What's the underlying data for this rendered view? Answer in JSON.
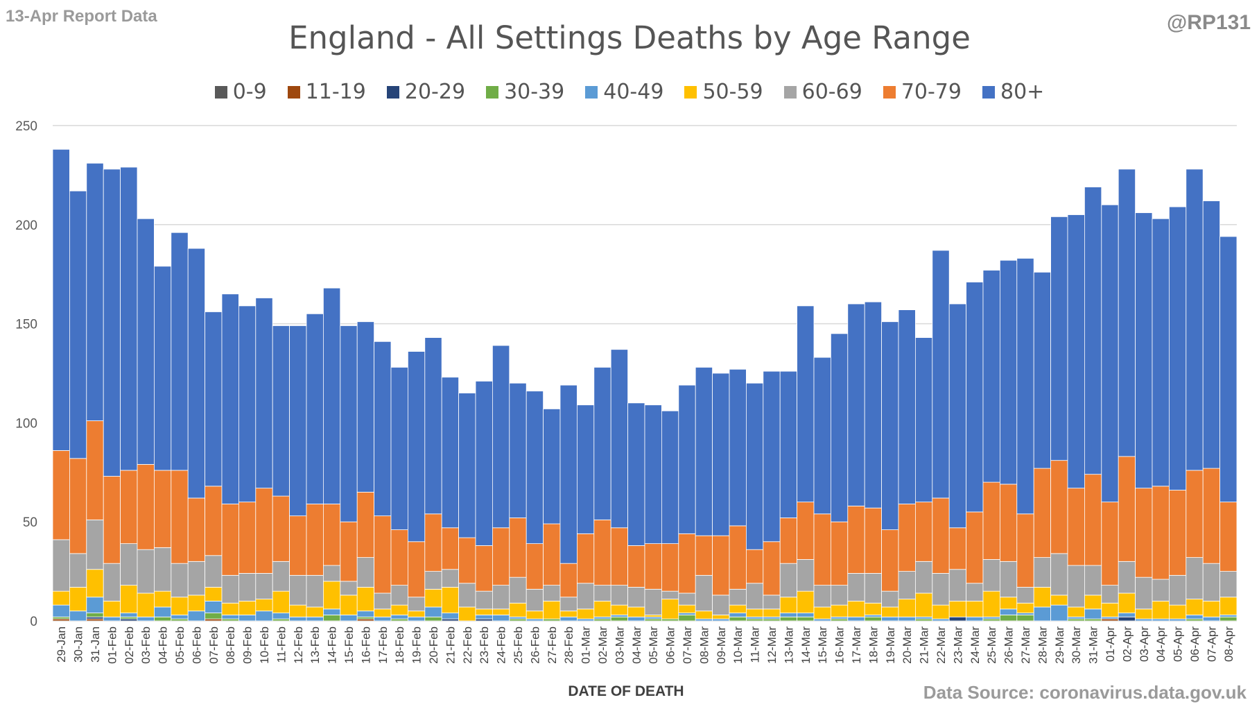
{
  "header": {
    "report_label": "13-Apr Report Data",
    "handle": "@RP131",
    "source": "Data Source: coronavirus.data.gov.uk"
  },
  "chart_data": {
    "type": "bar",
    "stacked": true,
    "title": "England - All Settings Deaths by Age Range",
    "xlabel": "DATE OF DEATH",
    "ylabel": "",
    "ylim": [
      0,
      250
    ],
    "yticks": [
      0,
      50,
      100,
      150,
      200,
      250
    ],
    "grid": true,
    "legend_position": "top",
    "categories": [
      "29-Jan",
      "30-Jan",
      "31-Jan",
      "01-Feb",
      "02-Feb",
      "03-Feb",
      "04-Feb",
      "05-Feb",
      "06-Feb",
      "07-Feb",
      "08-Feb",
      "09-Feb",
      "10-Feb",
      "11-Feb",
      "12-Feb",
      "13-Feb",
      "14-Feb",
      "15-Feb",
      "16-Feb",
      "17-Feb",
      "18-Feb",
      "19-Feb",
      "20-Feb",
      "21-Feb",
      "22-Feb",
      "23-Feb",
      "24-Feb",
      "25-Feb",
      "26-Feb",
      "27-Feb",
      "28-Feb",
      "01-Mar",
      "02-Mar",
      "03-Mar",
      "04-Mar",
      "05-Mar",
      "06-Mar",
      "07-Mar",
      "08-Mar",
      "09-Mar",
      "10-Mar",
      "11-Mar",
      "12-Mar",
      "13-Mar",
      "14-Mar",
      "15-Mar",
      "16-Mar",
      "17-Mar",
      "18-Mar",
      "19-Mar",
      "20-Mar",
      "21-Mar",
      "22-Mar",
      "23-Mar",
      "24-Mar",
      "25-Mar",
      "26-Mar",
      "27-Mar",
      "28-Mar",
      "29-Mar",
      "30-Mar",
      "31-Mar",
      "01-Apr",
      "02-Apr",
      "03-Apr",
      "04-Apr",
      "05-Apr",
      "06-Apr",
      "07-Apr",
      "08-Apr"
    ],
    "series": [
      {
        "name": "0-9",
        "color": "#595959",
        "values": [
          0,
          0,
          0,
          0,
          0,
          0,
          0,
          0,
          0,
          0,
          0,
          0,
          0,
          0,
          0,
          0,
          0,
          0,
          0,
          0,
          0,
          0,
          0,
          0,
          0,
          0,
          0,
          0,
          0,
          0,
          0,
          0,
          0,
          0,
          0,
          0,
          0,
          0,
          0,
          0,
          0,
          0,
          0,
          0,
          0,
          0,
          0,
          0,
          0,
          0,
          0,
          0,
          0,
          0,
          0,
          0,
          0,
          0,
          0,
          0,
          0,
          0,
          0,
          0,
          0,
          0,
          0,
          0,
          0,
          0
        ]
      },
      {
        "name": "11-19",
        "color": "#9e480e",
        "values": [
          1,
          0,
          1,
          0,
          0,
          0,
          0,
          0,
          0,
          1,
          0,
          0,
          0,
          0,
          0,
          0,
          0,
          0,
          1,
          0,
          0,
          0,
          0,
          0,
          0,
          0,
          0,
          0,
          0,
          0,
          0,
          0,
          0,
          0,
          0,
          0,
          0,
          0,
          0,
          0,
          0,
          0,
          0,
          0,
          0,
          0,
          0,
          0,
          0,
          0,
          0,
          0,
          0,
          0,
          0,
          0,
          0,
          0,
          0,
          0,
          0,
          0,
          1,
          0,
          0,
          0,
          0,
          0,
          0,
          0
        ]
      },
      {
        "name": "20-29",
        "color": "#264478",
        "values": [
          0,
          0,
          1,
          0,
          1,
          0,
          0,
          0,
          0,
          0,
          0,
          0,
          0,
          0,
          0,
          0,
          0,
          0,
          0,
          0,
          0,
          0,
          0,
          1,
          0,
          1,
          0,
          0,
          0,
          0,
          0,
          0,
          0,
          0,
          0,
          0,
          0,
          0,
          0,
          0,
          0,
          0,
          0,
          0,
          0,
          0,
          0,
          0,
          0,
          0,
          0,
          0,
          0,
          2,
          0,
          0,
          0,
          0,
          0,
          0,
          0,
          0,
          0,
          2,
          0,
          0,
          0,
          0,
          0,
          0
        ]
      },
      {
        "name": "30-39",
        "color": "#70ad47",
        "values": [
          1,
          0,
          2,
          0,
          1,
          0,
          2,
          1,
          0,
          3,
          1,
          0,
          0,
          1,
          0,
          0,
          3,
          0,
          1,
          0,
          1,
          0,
          2,
          0,
          0,
          0,
          0,
          1,
          0,
          1,
          0,
          0,
          1,
          2,
          0,
          1,
          1,
          3,
          0,
          0,
          2,
          1,
          1,
          2,
          2,
          0,
          1,
          0,
          2,
          0,
          0,
          1,
          0,
          0,
          0,
          1,
          3,
          3,
          0,
          0,
          1,
          1,
          0,
          0,
          0,
          0,
          0,
          1,
          0,
          2
        ]
      },
      {
        "name": "40-49",
        "color": "#5b9bd5",
        "values": [
          6,
          5,
          8,
          2,
          2,
          2,
          5,
          2,
          5,
          6,
          2,
          3,
          5,
          3,
          2,
          2,
          3,
          3,
          3,
          2,
          2,
          2,
          5,
          3,
          0,
          2,
          3,
          1,
          1,
          0,
          2,
          1,
          1,
          1,
          2,
          1,
          0,
          1,
          1,
          1,
          2,
          1,
          1,
          2,
          2,
          1,
          1,
          2,
          1,
          2,
          2,
          1,
          1,
          0,
          2,
          1,
          3,
          1,
          7,
          8,
          1,
          5,
          1,
          2,
          1,
          1,
          1,
          2,
          2,
          1
        ]
      },
      {
        "name": "50-59",
        "color": "#ffc000",
        "values": [
          7,
          12,
          14,
          8,
          14,
          12,
          8,
          9,
          8,
          7,
          6,
          7,
          6,
          11,
          6,
          5,
          14,
          10,
          12,
          4,
          5,
          3,
          9,
          13,
          7,
          3,
          3,
          7,
          4,
          9,
          3,
          5,
          8,
          5,
          5,
          1,
          10,
          4,
          4,
          2,
          4,
          4,
          4,
          8,
          11,
          6,
          6,
          8,
          6,
          5,
          9,
          12,
          7,
          8,
          8,
          13,
          6,
          5,
          10,
          5,
          5,
          7,
          7,
          10,
          5,
          9,
          7,
          8,
          8,
          9
        ]
      },
      {
        "name": "60-69",
        "color": "#a5a5a5",
        "values": [
          26,
          17,
          25,
          19,
          21,
          22,
          22,
          17,
          17,
          16,
          14,
          14,
          13,
          15,
          15,
          16,
          8,
          7,
          15,
          8,
          10,
          7,
          9,
          9,
          12,
          9,
          12,
          13,
          11,
          8,
          7,
          13,
          8,
          10,
          10,
          13,
          4,
          6,
          18,
          10,
          8,
          13,
          7,
          17,
          16,
          11,
          10,
          14,
          15,
          8,
          14,
          16,
          16,
          16,
          9,
          16,
          18,
          8,
          15,
          21,
          21,
          15,
          9,
          16,
          16,
          11,
          15,
          21,
          19,
          13
        ]
      },
      {
        "name": "70-79",
        "color": "#ed7d31",
        "values": [
          45,
          48,
          50,
          44,
          37,
          43,
          39,
          47,
          32,
          35,
          36,
          36,
          43,
          33,
          30,
          36,
          31,
          30,
          33,
          39,
          28,
          28,
          29,
          21,
          23,
          23,
          29,
          30,
          23,
          31,
          17,
          25,
          33,
          29,
          21,
          23,
          24,
          30,
          20,
          30,
          32,
          17,
          27,
          23,
          29,
          36,
          32,
          34,
          33,
          31,
          34,
          30,
          38,
          21,
          36,
          39,
          39,
          37,
          45,
          47,
          39,
          46,
          42,
          53,
          45,
          47,
          43,
          44,
          48,
          35
        ]
      },
      {
        "name": "80+",
        "color": "#4472c4",
        "values": [
          152,
          135,
          130,
          155,
          153,
          124,
          103,
          120,
          126,
          88,
          106,
          99,
          96,
          86,
          96,
          96,
          109,
          99,
          86,
          88,
          82,
          96,
          89,
          76,
          73,
          83,
          92,
          68,
          77,
          58,
          90,
          65,
          77,
          90,
          72,
          70,
          67,
          75,
          85,
          82,
          79,
          84,
          86,
          74,
          99,
          79,
          95,
          102,
          104,
          105,
          98,
          83,
          125,
          113,
          116,
          107,
          113,
          129,
          99,
          123,
          138,
          145,
          150,
          145,
          139,
          135,
          143,
          152,
          135,
          134
        ]
      }
    ]
  }
}
